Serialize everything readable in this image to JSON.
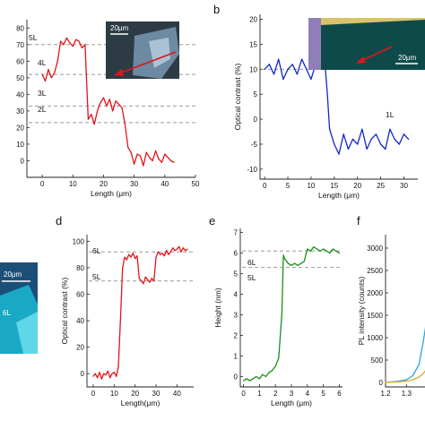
{
  "panel_letters": {
    "b": "b",
    "d": "d",
    "e": "e",
    "f": "f"
  },
  "insets": {
    "a_scale": "20μm",
    "b_scale": "20μm",
    "c_scale": "20μm",
    "c_layer": "6L"
  },
  "chart_data": [
    {
      "id": "a",
      "type": "line",
      "xlabel": "Length (μm)",
      "ylabel": "",
      "xlim": [
        -5,
        50
      ],
      "ylim": [
        -10,
        85
      ],
      "xticks": [
        0,
        10,
        20,
        30,
        40,
        50
      ],
      "yticks": [
        0,
        10,
        20,
        30,
        40,
        50,
        60,
        70,
        80
      ],
      "color": "#e0161b",
      "reference_lines": [
        {
          "label": "5L",
          "y": 70
        },
        {
          "label": "4L",
          "y": 52
        },
        {
          "label": "3L",
          "y": 33
        },
        {
          "label": "2L",
          "y": 23
        }
      ],
      "x": [
        0,
        1,
        2,
        3,
        4,
        5,
        6,
        7,
        8,
        9,
        10,
        11,
        12,
        13,
        14,
        15,
        16,
        17,
        18,
        19,
        20,
        21,
        22,
        23,
        24,
        25,
        26,
        27,
        28,
        29,
        30,
        31,
        32,
        33,
        34,
        35,
        36,
        37,
        38,
        39,
        40,
        41,
        42,
        43
      ],
      "y": [
        52,
        48,
        55,
        50,
        53,
        60,
        72,
        70,
        74,
        71,
        69,
        73,
        72,
        68,
        70,
        25,
        28,
        22,
        30,
        35,
        38,
        33,
        37,
        30,
        36,
        34,
        32,
        22,
        8,
        5,
        -2,
        4,
        3,
        -3,
        5,
        2,
        0,
        6,
        1,
        -1,
        4,
        2,
        0,
        -1
      ]
    },
    {
      "id": "b",
      "type": "line",
      "xlabel": "Length (μm)",
      "ylabel": "Optical contrast (%)",
      "xlim": [
        -1,
        33
      ],
      "ylim": [
        -12,
        21
      ],
      "xticks": [
        0,
        5,
        10,
        15,
        20,
        25,
        30
      ],
      "yticks": [
        -10,
        -5,
        0,
        5,
        10,
        15,
        20
      ],
      "color": "#1428c8",
      "reference_lines": [
        {
          "label": "1L",
          "y": 10
        }
      ],
      "x": [
        0,
        1,
        2,
        3,
        4,
        5,
        6,
        7,
        8,
        9,
        10,
        11,
        12,
        13,
        13.5,
        14,
        15,
        16,
        17,
        18,
        19,
        20,
        21,
        22,
        23,
        24,
        25,
        26,
        27,
        28,
        29,
        30,
        31
      ],
      "y": [
        10,
        11,
        9,
        12,
        8,
        10,
        11,
        9,
        12,
        10,
        8,
        11,
        12,
        11,
        5,
        -2,
        -5,
        -7,
        -3,
        -6,
        -4,
        -5,
        -2,
        -6,
        -4,
        -3,
        -5,
        -6,
        -2,
        -4,
        -5,
        -3,
        -4
      ]
    },
    {
      "id": "d",
      "type": "line",
      "xlabel": "Length(μm)",
      "ylabel": "Optical contrast (%)",
      "xlim": [
        -3,
        48
      ],
      "ylim": [
        -10,
        105
      ],
      "xticks": [
        0,
        10,
        20,
        30,
        40
      ],
      "yticks": [
        0,
        20,
        40,
        60,
        80,
        100
      ],
      "color": "#e0161b",
      "reference_lines": [
        {
          "label": "6L",
          "y": 92
        },
        {
          "label": "5L",
          "y": 70
        }
      ],
      "x": [
        0,
        1,
        2,
        3,
        4,
        5,
        6,
        7,
        8,
        9,
        10,
        11,
        12,
        13,
        14,
        15,
        16,
        17,
        18,
        19,
        20,
        21,
        22,
        23,
        24,
        25,
        26,
        27,
        28,
        29,
        30,
        31,
        32,
        33,
        34,
        35,
        36,
        37,
        38,
        39,
        40,
        41,
        42,
        43,
        44,
        45
      ],
      "y": [
        -2,
        0,
        -3,
        1,
        -4,
        0,
        -1,
        2,
        -3,
        0,
        1,
        -2,
        5,
        40,
        80,
        88,
        86,
        90,
        88,
        91,
        87,
        89,
        72,
        70,
        68,
        73,
        71,
        69,
        72,
        70,
        88,
        92,
        90,
        91,
        89,
        93,
        90,
        92,
        95,
        93,
        94,
        96,
        92,
        95,
        93,
        94
      ]
    },
    {
      "id": "e",
      "type": "line",
      "xlabel": "Length (μm)",
      "ylabel": "Height (nm)",
      "xlim": [
        -0.2,
        6.2
      ],
      "ylim": [
        -0.5,
        7.2
      ],
      "xticks": [
        0,
        1,
        2,
        3,
        4,
        5,
        6
      ],
      "yticks": [
        0,
        1,
        2,
        3,
        4,
        5,
        6,
        7
      ],
      "color": "#1e8c1e",
      "reference_lines": [
        {
          "label": "6L",
          "y": 6.1
        },
        {
          "label": "5L",
          "y": 5.3
        }
      ],
      "x": [
        0,
        0.2,
        0.4,
        0.6,
        0.8,
        1.0,
        1.2,
        1.4,
        1.6,
        1.8,
        2.0,
        2.2,
        2.4,
        2.5,
        2.6,
        2.7,
        2.8,
        3.0,
        3.2,
        3.4,
        3.6,
        3.8,
        4.0,
        4.2,
        4.4,
        4.6,
        4.8,
        5.0,
        5.2,
        5.4,
        5.6,
        5.8,
        6.0
      ],
      "y": [
        -0.2,
        -0.1,
        -0.2,
        -0.1,
        0.0,
        -0.1,
        0.1,
        0.0,
        0.2,
        0.3,
        0.5,
        0.9,
        3.0,
        5.9,
        5.7,
        5.6,
        5.5,
        5.4,
        5.5,
        5.4,
        5.5,
        5.6,
        6.2,
        6.1,
        6.3,
        6.2,
        6.1,
        6.2,
        6.1,
        6.0,
        6.2,
        6.1,
        6.0
      ]
    },
    {
      "id": "f",
      "type": "line",
      "xlabel": "",
      "ylabel": "PL intensity (counts)",
      "xlim": [
        1.2,
        1.5
      ],
      "ylim": [
        -100,
        3300
      ],
      "xticks": [
        1.2,
        1.3
      ],
      "yticks": [
        0,
        500,
        1000,
        1500,
        2000,
        2500,
        3000
      ],
      "series": [
        {
          "color": "#29a8e0",
          "x": [
            1.2,
            1.25,
            1.3,
            1.33,
            1.36,
            1.38,
            1.4,
            1.42,
            1.44,
            1.46
          ],
          "y": [
            0,
            20,
            60,
            150,
            400,
            900,
            1500,
            2100,
            2600,
            3100
          ]
        },
        {
          "color": "#e8a623",
          "x": [
            1.2,
            1.25,
            1.3,
            1.33,
            1.36,
            1.38,
            1.4,
            1.42,
            1.44,
            1.46
          ],
          "y": [
            0,
            10,
            30,
            60,
            120,
            200,
            320,
            500,
            700,
            950
          ]
        }
      ]
    }
  ]
}
